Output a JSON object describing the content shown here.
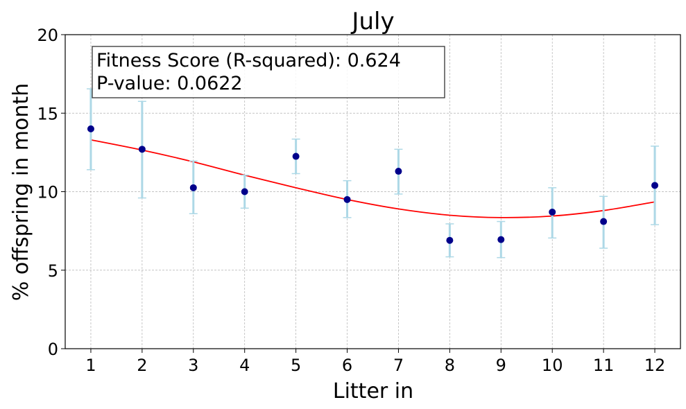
{
  "chart_data": {
    "type": "scatter",
    "title": "July",
    "xlabel": "Litter in",
    "ylabel": "% offspring in month",
    "xlim": [
      0.5,
      12.5
    ],
    "ylim": [
      0,
      20
    ],
    "x_ticks": [
      1,
      2,
      3,
      4,
      5,
      6,
      7,
      8,
      9,
      10,
      11,
      12
    ],
    "y_ticks": [
      0,
      5,
      10,
      15,
      20
    ],
    "grid": true,
    "points": {
      "x": [
        1,
        2,
        3,
        4,
        5,
        6,
        7,
        8,
        9,
        10,
        11,
        12
      ],
      "y": [
        14.0,
        12.7,
        10.25,
        10.0,
        12.25,
        9.5,
        11.3,
        6.9,
        6.95,
        8.7,
        8.1,
        10.4
      ],
      "err_low": [
        11.4,
        9.6,
        8.6,
        8.95,
        11.15,
        8.35,
        9.85,
        5.85,
        5.8,
        7.05,
        6.4,
        7.9
      ],
      "err_high": [
        16.55,
        15.75,
        11.95,
        11.05,
        13.35,
        10.7,
        12.7,
        7.95,
        8.1,
        10.25,
        9.7,
        12.9
      ],
      "color": "#00008b",
      "error_color": "#add8e6"
    },
    "fit_curve": {
      "color": "#ff0000",
      "x": [
        1,
        2,
        3,
        4,
        5,
        6,
        7,
        8,
        9,
        10,
        11,
        12
      ],
      "y": [
        13.3,
        12.65,
        11.9,
        11.05,
        10.25,
        9.5,
        8.9,
        8.5,
        8.35,
        8.45,
        8.8,
        9.35
      ]
    },
    "annotation": {
      "line1": "Fitness Score (R-squared): 0.624",
      "line2": "P-value: 0.0622"
    }
  }
}
